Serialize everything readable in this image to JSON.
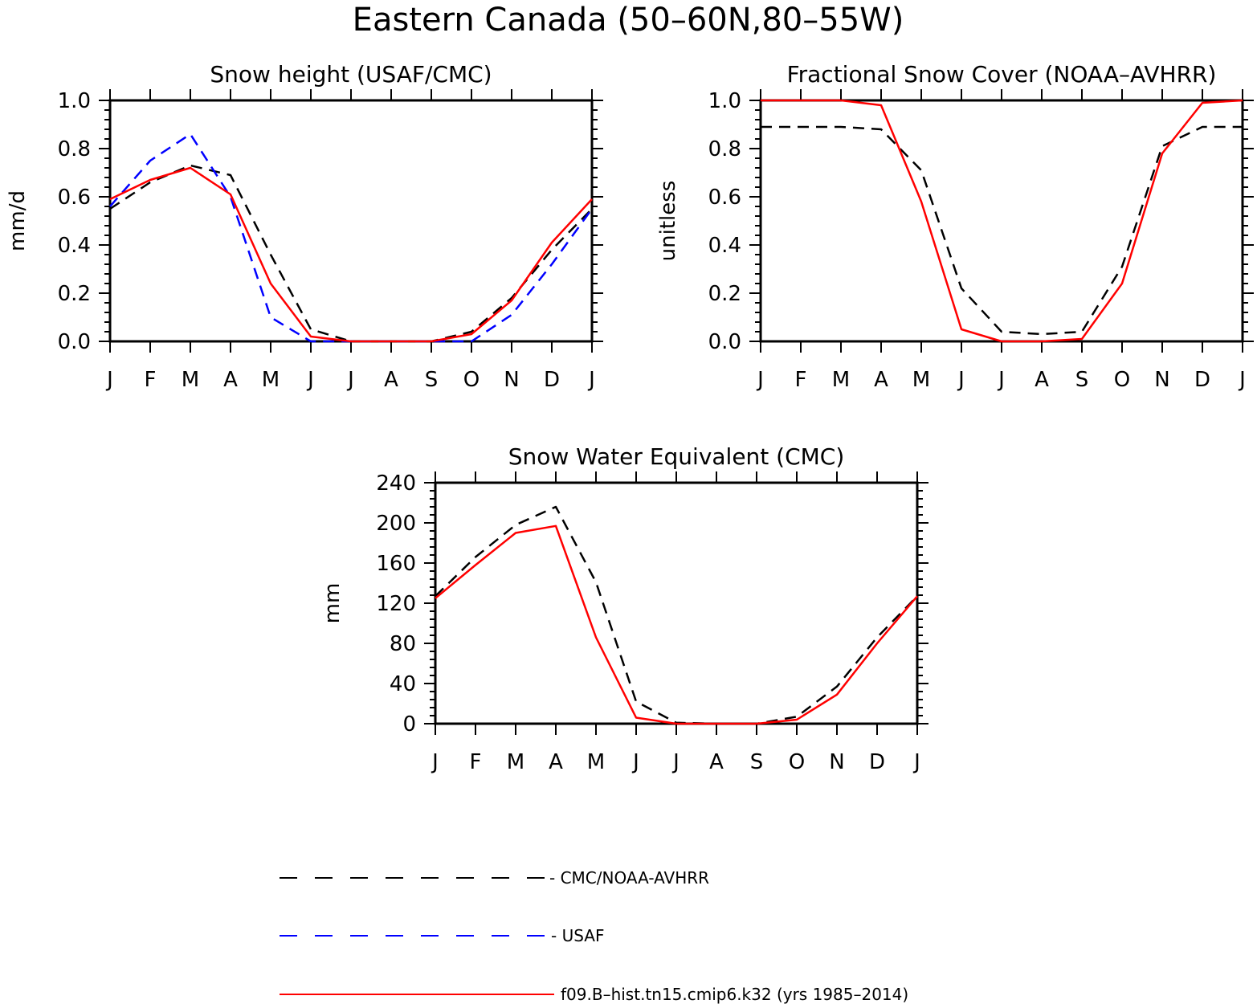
{
  "figure": {
    "title": "Eastern Canada (50–60N,80–55W)"
  },
  "legend": {
    "entries": [
      {
        "label": "- CMC/NOAA-AVHRR",
        "color": "#000000",
        "style": "dashed"
      },
      {
        "label": "- USAF",
        "color": "#0000ff",
        "style": "dashed"
      },
      {
        "label": "f09.B–hist.tn15.cmip6.k32 (yrs 1985–2014)",
        "color": "#ff0000",
        "style": "solid"
      }
    ]
  },
  "chart_data": [
    {
      "type": "line",
      "title": "Snow height (USAF/CMC)",
      "xlabel": "",
      "ylabel": "mm/d",
      "x": [
        "J",
        "F",
        "M",
        "A",
        "M",
        "J",
        "J",
        "A",
        "S",
        "O",
        "N",
        "D",
        "J"
      ],
      "ylim": [
        0,
        1.0
      ],
      "yticks": [
        "0.0",
        "0.2",
        "0.4",
        "0.6",
        "0.8",
        "1.0"
      ],
      "series": [
        {
          "name": "CMC/NOAA-AVHRR",
          "color": "#000000",
          "style": "dashed",
          "values": [
            0.55,
            0.66,
            0.73,
            0.69,
            0.36,
            0.05,
            0.0,
            0.0,
            0.0,
            0.04,
            0.18,
            0.38,
            0.55
          ]
        },
        {
          "name": "USAF",
          "color": "#0000ff",
          "style": "dashed",
          "values": [
            0.56,
            0.75,
            0.86,
            0.6,
            0.1,
            0.0,
            0.0,
            0.0,
            0.0,
            0.0,
            0.11,
            0.32,
            0.55
          ]
        },
        {
          "name": "f09.B-hist.tn15.cmip6.k32",
          "color": "#ff0000",
          "style": "solid",
          "values": [
            0.59,
            0.67,
            0.72,
            0.61,
            0.24,
            0.02,
            0.0,
            0.0,
            0.0,
            0.03,
            0.17,
            0.41,
            0.59
          ]
        }
      ]
    },
    {
      "type": "line",
      "title": "Fractional Snow Cover (NOAA–AVHRR)",
      "xlabel": "",
      "ylabel": "unitless",
      "x": [
        "J",
        "F",
        "M",
        "A",
        "M",
        "J",
        "J",
        "A",
        "S",
        "O",
        "N",
        "D",
        "J"
      ],
      "ylim": [
        0,
        1.0
      ],
      "yticks": [
        "0.0",
        "0.2",
        "0.4",
        "0.6",
        "0.8",
        "1.0"
      ],
      "series": [
        {
          "name": "CMC/NOAA-AVHRR",
          "color": "#000000",
          "style": "dashed",
          "values": [
            0.89,
            0.89,
            0.89,
            0.88,
            0.71,
            0.22,
            0.04,
            0.03,
            0.04,
            0.31,
            0.81,
            0.89,
            0.89
          ]
        },
        {
          "name": "f09.B-hist.tn15.cmip6.k32",
          "color": "#ff0000",
          "style": "solid",
          "values": [
            1.0,
            1.0,
            1.0,
            0.98,
            0.58,
            0.05,
            0.0,
            0.0,
            0.01,
            0.24,
            0.78,
            0.99,
            1.0
          ]
        }
      ]
    },
    {
      "type": "line",
      "title": "Snow Water Equivalent (CMC)",
      "xlabel": "",
      "ylabel": "mm",
      "x": [
        "J",
        "F",
        "M",
        "A",
        "M",
        "J",
        "J",
        "A",
        "S",
        "O",
        "N",
        "D",
        "J"
      ],
      "ylim": [
        0,
        240
      ],
      "yticks": [
        "0",
        "40",
        "80",
        "120",
        "160",
        "200",
        "240"
      ],
      "series": [
        {
          "name": "CMC/NOAA-AVHRR",
          "color": "#000000",
          "style": "dashed",
          "values": [
            127,
            166,
            198,
            216,
            141,
            22,
            1,
            0,
            0,
            7,
            37,
            86,
            127
          ]
        },
        {
          "name": "f09.B-hist.tn15.cmip6.k32",
          "color": "#ff0000",
          "style": "solid",
          "values": [
            125,
            158,
            190,
            197,
            86,
            6,
            0,
            0,
            0,
            4,
            29,
            80,
            127
          ]
        }
      ]
    }
  ]
}
